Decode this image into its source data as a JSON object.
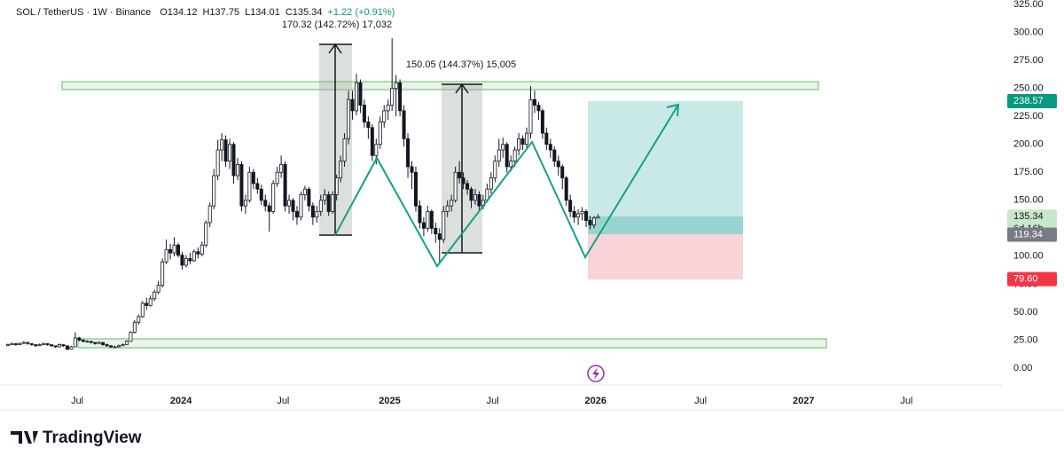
{
  "header": {
    "symbol": "SOL / TetherUS · 1W · Binance",
    "ohlc_keys": [
      "O",
      "H",
      "L",
      "C"
    ],
    "change": "+1.22 (+0.91%)"
  },
  "chart_data": {
    "type": "candlestick",
    "ohlc": [
      [
        20,
        22,
        20,
        21
      ],
      [
        21,
        23,
        21,
        22
      ],
      [
        22,
        22,
        20,
        21
      ],
      [
        21,
        23,
        21,
        22
      ],
      [
        22,
        24,
        22,
        23
      ],
      [
        23,
        23,
        21,
        22
      ],
      [
        22,
        22,
        20,
        21
      ],
      [
        21,
        21,
        19,
        20
      ],
      [
        20,
        22,
        20,
        21
      ],
      [
        21,
        23,
        21,
        22
      ],
      [
        22,
        22,
        20,
        21
      ],
      [
        21,
        21,
        19,
        20
      ],
      [
        20,
        20,
        18,
        19
      ],
      [
        19,
        22,
        19,
        21
      ],
      [
        21,
        21,
        19,
        20
      ],
      [
        20,
        20,
        16,
        17
      ],
      [
        17,
        20,
        17,
        19
      ],
      [
        19,
        32,
        19,
        27
      ],
      [
        27,
        28,
        24,
        25
      ],
      [
        25,
        26,
        23,
        24
      ],
      [
        24,
        25,
        23,
        24
      ],
      [
        24,
        24,
        22,
        23
      ],
      [
        23,
        23,
        21,
        22
      ],
      [
        22,
        24,
        22,
        23
      ],
      [
        23,
        23,
        20,
        21
      ],
      [
        21,
        22,
        19,
        20
      ],
      [
        20,
        20,
        18,
        19
      ],
      [
        19,
        20,
        18,
        19
      ],
      [
        19,
        21,
        19,
        20
      ],
      [
        20,
        22,
        20,
        21
      ],
      [
        21,
        25,
        21,
        24
      ],
      [
        24,
        33,
        24,
        32
      ],
      [
        32,
        43,
        31,
        41
      ],
      [
        41,
        48,
        39,
        46
      ],
      [
        46,
        60,
        45,
        58
      ],
      [
        58,
        63,
        52,
        56
      ],
      [
        56,
        65,
        55,
        62
      ],
      [
        62,
        70,
        60,
        68
      ],
      [
        68,
        78,
        66,
        74
      ],
      [
        74,
        98,
        72,
        95
      ],
      [
        95,
        115,
        93,
        106
      ],
      [
        106,
        111,
        97,
        103
      ],
      [
        103,
        117,
        100,
        110
      ],
      [
        110,
        112,
        99,
        101
      ],
      [
        101,
        104,
        88,
        92
      ],
      [
        92,
        101,
        90,
        98
      ],
      [
        98,
        103,
        93,
        96
      ],
      [
        96,
        106,
        95,
        104
      ],
      [
        104,
        108,
        98,
        102
      ],
      [
        102,
        113,
        100,
        110
      ],
      [
        110,
        132,
        108,
        130
      ],
      [
        130,
        148,
        126,
        145
      ],
      [
        145,
        178,
        142,
        172
      ],
      [
        172,
        204,
        168,
        195
      ],
      [
        195,
        210,
        185,
        204
      ],
      [
        204,
        208,
        180,
        185
      ],
      [
        185,
        205,
        178,
        200
      ],
      [
        200,
        202,
        165,
        172
      ],
      [
        172,
        188,
        168,
        182
      ],
      [
        182,
        185,
        140,
        145
      ],
      [
        145,
        155,
        138,
        150
      ],
      [
        150,
        180,
        148,
        175
      ],
      [
        175,
        178,
        160,
        165
      ],
      [
        165,
        170,
        156,
        160
      ],
      [
        160,
        164,
        146,
        150
      ],
      [
        150,
        155,
        140,
        145
      ],
      [
        145,
        148,
        122,
        140
      ],
      [
        140,
        168,
        138,
        165
      ],
      [
        165,
        180,
        162,
        175
      ],
      [
        175,
        190,
        170,
        182
      ],
      [
        182,
        185,
        140,
        145
      ],
      [
        145,
        155,
        138,
        150
      ],
      [
        150,
        152,
        132,
        140
      ],
      [
        140,
        145,
        128,
        135
      ],
      [
        135,
        158,
        132,
        155
      ],
      [
        155,
        163,
        150,
        160
      ],
      [
        160,
        162,
        140,
        145
      ],
      [
        145,
        148,
        128,
        135
      ],
      [
        135,
        145,
        130,
        140
      ],
      [
        140,
        155,
        136,
        150
      ],
      [
        150,
        160,
        146,
        155
      ],
      [
        155,
        158,
        136,
        140
      ],
      [
        140,
        158,
        138,
        155
      ],
      [
        155,
        173,
        150,
        170
      ],
      [
        170,
        190,
        166,
        185
      ],
      [
        185,
        210,
        180,
        205
      ],
      [
        205,
        248,
        200,
        240
      ],
      [
        240,
        248,
        222,
        230
      ],
      [
        230,
        263,
        226,
        255
      ],
      [
        255,
        258,
        228,
        235
      ],
      [
        235,
        240,
        215,
        220
      ],
      [
        220,
        225,
        205,
        215
      ],
      [
        215,
        218,
        185,
        190
      ],
      [
        190,
        205,
        182,
        200
      ],
      [
        200,
        225,
        196,
        220
      ],
      [
        220,
        235,
        215,
        230
      ],
      [
        230,
        240,
        222,
        235
      ],
      [
        235,
        295,
        230,
        250
      ],
      [
        250,
        262,
        225,
        255
      ],
      [
        255,
        258,
        225,
        230
      ],
      [
        230,
        235,
        198,
        205
      ],
      [
        205,
        210,
        170,
        180
      ],
      [
        180,
        185,
        160,
        175
      ],
      [
        175,
        180,
        140,
        145
      ],
      [
        145,
        150,
        125,
        130
      ],
      [
        130,
        135,
        118,
        125
      ],
      [
        125,
        145,
        122,
        140
      ],
      [
        140,
        142,
        120,
        125
      ],
      [
        125,
        130,
        112,
        120
      ],
      [
        120,
        125,
        95,
        115
      ],
      [
        115,
        145,
        112,
        140
      ],
      [
        140,
        150,
        135,
        145
      ],
      [
        145,
        155,
        140,
        150
      ],
      [
        150,
        180,
        148,
        175
      ],
      [
        175,
        185,
        165,
        170
      ],
      [
        170,
        175,
        160,
        165
      ],
      [
        165,
        168,
        155,
        160
      ],
      [
        160,
        162,
        143,
        150
      ],
      [
        150,
        160,
        146,
        155
      ],
      [
        155,
        158,
        140,
        145
      ],
      [
        145,
        155,
        142,
        150
      ],
      [
        150,
        165,
        148,
        160
      ],
      [
        160,
        175,
        156,
        170
      ],
      [
        170,
        190,
        166,
        185
      ],
      [
        185,
        205,
        180,
        195
      ],
      [
        195,
        206,
        188,
        200
      ],
      [
        200,
        202,
        175,
        180
      ],
      [
        180,
        190,
        176,
        185
      ],
      [
        185,
        198,
        180,
        195
      ],
      [
        195,
        210,
        190,
        205
      ],
      [
        205,
        208,
        195,
        200
      ],
      [
        200,
        215,
        196,
        210
      ],
      [
        210,
        252,
        205,
        240
      ],
      [
        240,
        248,
        228,
        235
      ],
      [
        235,
        238,
        222,
        230
      ],
      [
        230,
        232,
        205,
        210
      ],
      [
        210,
        215,
        195,
        200
      ],
      [
        200,
        205,
        188,
        195
      ],
      [
        195,
        198,
        180,
        185
      ],
      [
        185,
        190,
        172,
        180
      ],
      [
        180,
        182,
        160,
        170
      ],
      [
        170,
        172,
        145,
        150
      ],
      [
        150,
        155,
        135,
        140
      ],
      [
        140,
        145,
        130,
        135
      ],
      [
        135,
        142,
        128,
        138
      ],
      [
        138,
        144,
        132,
        140
      ],
      [
        140,
        142,
        126,
        132
      ],
      [
        132,
        136,
        124,
        128
      ],
      [
        128,
        136,
        125,
        134.12
      ],
      [
        134.12,
        137.75,
        134.01,
        135.34
      ]
    ],
    "up_color": "#ffffff",
    "down_color": "#131722",
    "xlim": [
      -2,
      251
    ],
    "xticks": [
      {
        "value": 17.5,
        "label": "Jul"
      },
      {
        "value": 43.7,
        "label": "2024"
      },
      {
        "value": 69.5,
        "label": "Jul"
      },
      {
        "value": 96.4,
        "label": "2025"
      },
      {
        "value": 122.4,
        "label": "Jul"
      },
      {
        "value": 148.4,
        "label": "2026"
      },
      {
        "value": 174.9,
        "label": "Jul"
      },
      {
        "value": 200.9,
        "label": "2027"
      },
      {
        "value": 226.9,
        "label": "Jul"
      }
    ],
    "ylim": [
      -13.5,
      329
    ],
    "yticks": [
      {
        "value": 0,
        "label": "0.00"
      },
      {
        "value": 25,
        "label": "25.00"
      },
      {
        "value": 50,
        "label": "50.00"
      },
      {
        "value": 75,
        "label": "75.00"
      },
      {
        "value": 100,
        "label": "100.00"
      },
      {
        "value": 125,
        "label": "125.00"
      },
      {
        "value": 150,
        "label": "150.00"
      },
      {
        "value": 175,
        "label": "175.00"
      },
      {
        "value": 200,
        "label": "200.00"
      },
      {
        "value": 225,
        "label": "225.00"
      },
      {
        "value": 250,
        "label": "250.00"
      },
      {
        "value": 275,
        "label": "275.00"
      },
      {
        "value": 300,
        "label": "300.00"
      },
      {
        "value": 325,
        "label": "325.00"
      }
    ],
    "price_tags": [
      {
        "value": 238.57,
        "color": "#089981",
        "text_color": "#ffffff"
      },
      {
        "value": 135.34,
        "color": "#c8e6c9",
        "text_color": "#131722",
        "note": "6d 16h"
      },
      {
        "value": 119.34,
        "color": "#787b86",
        "text_color": "#ffffff"
      },
      {
        "value": 79.6,
        "label": "79.60",
        "color": "#f23645",
        "text_color": "#ffffff"
      }
    ],
    "annotations": [
      "170.32 (142.72%) 17,032",
      "150.05 (144.37%) 15,005"
    ]
  },
  "footer": {
    "brand": "TradingView"
  }
}
